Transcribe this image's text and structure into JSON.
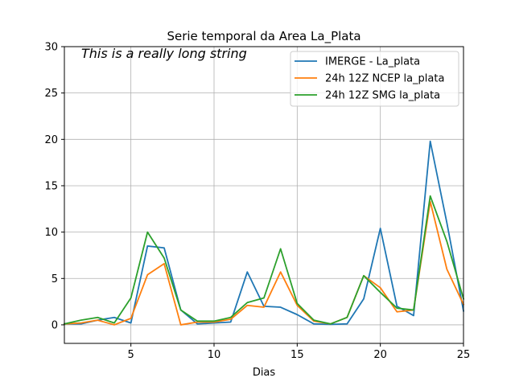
{
  "chart_data": {
    "type": "line",
    "title": "Serie temporal da Area La_Plata",
    "xlabel": "Dias",
    "ylabel": "",
    "xlim": [
      1,
      25
    ],
    "ylim": [
      -2,
      30
    ],
    "xticks": [
      5,
      10,
      15,
      20,
      25
    ],
    "yticks": [
      0,
      5,
      10,
      15,
      20,
      25,
      30
    ],
    "xtick_labels": [
      "5",
      "10",
      "15",
      "20",
      "25"
    ],
    "ytick_labels": [
      "0",
      "5",
      "10",
      "15",
      "20",
      "25",
      "30"
    ],
    "grid": true,
    "legend_position": "top-right",
    "annotation": "This is a really long string",
    "x": [
      1,
      2,
      3,
      4,
      5,
      6,
      7,
      8,
      9,
      10,
      11,
      12,
      13,
      14,
      15,
      16,
      17,
      18,
      19,
      20,
      21,
      22,
      23,
      24,
      25
    ],
    "series": [
      {
        "name": "IMERGE - La_plata",
        "color": "#1f77b4",
        "values": [
          0.1,
          0.1,
          0.5,
          0.8,
          0.2,
          8.5,
          8.3,
          1.6,
          0.1,
          0.2,
          0.3,
          5.7,
          2.0,
          1.9,
          1.1,
          0.1,
          0.05,
          0.1,
          2.8,
          10.4,
          2.0,
          1.0,
          19.8,
          11.0,
          1.5
        ]
      },
      {
        "name": "24h 12Z NCEP la_plata",
        "color": "#ff7f0e",
        "values": [
          0.1,
          0.2,
          0.5,
          0.0,
          0.7,
          5.4,
          6.6,
          0.0,
          0.3,
          0.3,
          0.6,
          2.1,
          1.9,
          5.7,
          2.1,
          0.4,
          0.1,
          0.8,
          5.3,
          4.0,
          1.4,
          1.6,
          13.3,
          6.0,
          2.2
        ]
      },
      {
        "name": "24h 12Z SMG la_plata",
        "color": "#2ca02c",
        "values": [
          0.1,
          0.5,
          0.8,
          0.2,
          2.9,
          10.0,
          7.2,
          1.6,
          0.4,
          0.4,
          0.8,
          2.4,
          2.9,
          8.2,
          2.3,
          0.5,
          0.1,
          0.8,
          5.3,
          3.5,
          1.8,
          1.6,
          13.9,
          9.0,
          2.8
        ]
      }
    ]
  }
}
